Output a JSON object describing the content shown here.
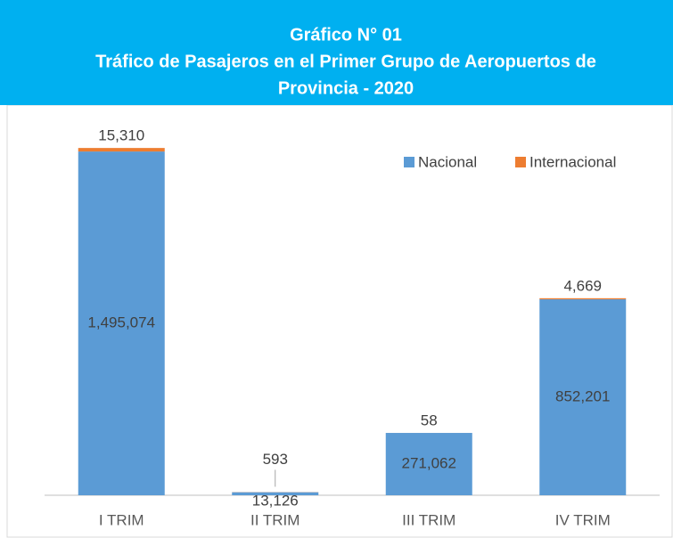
{
  "chart_data": {
    "type": "stacked_bar",
    "title": [
      "Gráfico N° 01",
      "Tráfico de Pasajeros en el Primer Grupo de Aeropuertos de",
      "Provincia - 2020"
    ],
    "categories": [
      "I TRIM",
      "II TRIM",
      "III TRIM",
      "IV TRIM"
    ],
    "series": [
      {
        "name": "Nacional",
        "color": "#5b9bd5",
        "values": [
          1495074,
          13126,
          271062,
          852201
        ],
        "value_labels": [
          "1,495,074",
          "13,126",
          "271,062",
          "852,201"
        ]
      },
      {
        "name": "Internacional",
        "color": "#ed7d31",
        "values": [
          15310,
          593,
          58,
          4669
        ],
        "value_labels": [
          "15,310",
          "593",
          "58",
          "4,669"
        ]
      }
    ],
    "ylim": [
      0,
      1600000
    ],
    "legend": "top-right"
  }
}
